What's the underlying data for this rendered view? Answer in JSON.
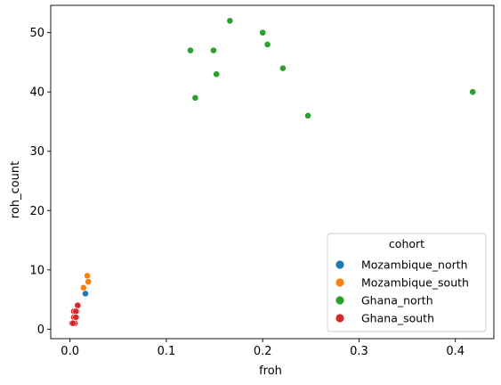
{
  "chart_data": {
    "type": "scatter",
    "xlabel": "froh",
    "ylabel": "roh_count",
    "xlim": [
      -0.02,
      0.44
    ],
    "ylim": [
      -1.6,
      54.6
    ],
    "xticks": [
      0.0,
      0.1,
      0.2,
      0.3,
      0.4
    ],
    "xtick_labels": [
      "0.0",
      "0.1",
      "0.2",
      "0.3",
      "0.4"
    ],
    "yticks": [
      0,
      10,
      20,
      30,
      40,
      50
    ],
    "ytick_labels": [
      "0",
      "10",
      "20",
      "30",
      "40",
      "50"
    ],
    "grid": false,
    "legend": {
      "title": "cohort",
      "placement": "lower-right"
    },
    "series": [
      {
        "name": "Mozambique_north",
        "color": "#1f77b4",
        "points": [
          {
            "x": 0.016,
            "y": 6
          },
          {
            "x": 0.005,
            "y": 3
          },
          {
            "x": 0.007,
            "y": 2
          }
        ]
      },
      {
        "name": "Mozambique_south",
        "color": "#ff7f0e",
        "points": [
          {
            "x": 0.018,
            "y": 9
          },
          {
            "x": 0.019,
            "y": 8
          },
          {
            "x": 0.014,
            "y": 7
          }
        ]
      },
      {
        "name": "Ghana_north",
        "color": "#2ca02c",
        "points": [
          {
            "x": 0.166,
            "y": 52
          },
          {
            "x": 0.2,
            "y": 50
          },
          {
            "x": 0.205,
            "y": 48
          },
          {
            "x": 0.125,
            "y": 47
          },
          {
            "x": 0.149,
            "y": 47
          },
          {
            "x": 0.221,
            "y": 44
          },
          {
            "x": 0.152,
            "y": 43
          },
          {
            "x": 0.13,
            "y": 39
          },
          {
            "x": 0.418,
            "y": 40
          },
          {
            "x": 0.247,
            "y": 36
          }
        ]
      },
      {
        "name": "Ghana_south",
        "color": "#d62728",
        "points": [
          {
            "x": 0.008,
            "y": 4
          },
          {
            "x": 0.007,
            "y": 3
          },
          {
            "x": 0.004,
            "y": 3
          },
          {
            "x": 0.006,
            "y": 3
          },
          {
            "x": 0.005,
            "y": 2
          },
          {
            "x": 0.004,
            "y": 2
          },
          {
            "x": 0.006,
            "y": 2
          },
          {
            "x": 0.002,
            "y": 1
          },
          {
            "x": 0.004,
            "y": 1
          },
          {
            "x": 0.005,
            "y": 1
          },
          {
            "x": 0.003,
            "y": 1
          }
        ]
      }
    ]
  }
}
